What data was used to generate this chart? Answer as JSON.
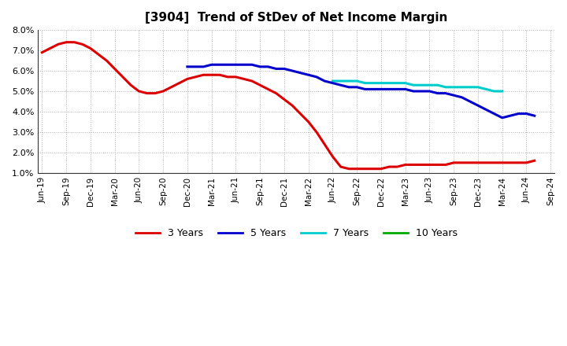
{
  "title": "[3904]  Trend of StDev of Net Income Margin",
  "background_color": "#ffffff",
  "grid_color": "#b0b0b0",
  "ylim": [
    0.01,
    0.08
  ],
  "yticks": [
    0.01,
    0.02,
    0.03,
    0.04,
    0.05,
    0.06,
    0.07,
    0.08
  ],
  "series": {
    "3 Years": {
      "color": "#dd0000",
      "x": [
        0,
        1,
        2,
        3,
        4,
        5,
        6,
        7,
        8,
        9,
        10,
        11,
        12,
        13,
        14,
        15,
        16,
        17,
        18,
        19,
        20,
        21,
        22,
        23,
        24,
        25,
        26,
        27,
        28,
        29,
        30,
        31,
        32,
        33,
        34,
        35,
        36,
        37,
        38,
        39,
        40,
        41,
        42,
        43,
        44,
        45,
        46,
        47,
        48,
        49,
        50,
        51,
        52,
        53,
        54,
        55,
        56,
        57,
        58,
        59,
        60,
        61
      ],
      "y": [
        0.069,
        0.071,
        0.073,
        0.074,
        0.074,
        0.073,
        0.071,
        0.068,
        0.065,
        0.061,
        0.057,
        0.053,
        0.05,
        0.049,
        0.049,
        0.05,
        0.052,
        0.054,
        0.056,
        0.057,
        0.058,
        0.058,
        0.058,
        0.057,
        0.057,
        0.056,
        0.055,
        0.053,
        0.051,
        0.049,
        0.046,
        0.043,
        0.039,
        0.035,
        0.03,
        0.024,
        0.018,
        0.013,
        0.012,
        0.012,
        0.012,
        0.012,
        0.012,
        0.013,
        0.013,
        0.014,
        0.014,
        0.014,
        0.014,
        0.014,
        0.014,
        0.015,
        0.015,
        0.015,
        0.015,
        0.015,
        0.015,
        0.015,
        0.015,
        0.015,
        0.015,
        0.016
      ]
    },
    "5 Years": {
      "color": "#0000cc",
      "x": [
        18,
        19,
        20,
        21,
        22,
        23,
        24,
        25,
        26,
        27,
        28,
        29,
        30,
        31,
        32,
        33,
        34,
        35,
        36,
        37,
        38,
        39,
        40,
        41,
        42,
        43,
        44,
        45,
        46,
        47,
        48,
        49,
        50,
        51,
        52,
        53,
        54,
        55,
        56,
        57,
        58,
        59,
        60,
        61
      ],
      "y": [
        0.062,
        0.062,
        0.062,
        0.063,
        0.063,
        0.063,
        0.063,
        0.063,
        0.063,
        0.062,
        0.062,
        0.061,
        0.061,
        0.06,
        0.059,
        0.058,
        0.057,
        0.055,
        0.054,
        0.053,
        0.052,
        0.052,
        0.051,
        0.051,
        0.051,
        0.051,
        0.051,
        0.051,
        0.05,
        0.05,
        0.05,
        0.049,
        0.049,
        0.048,
        0.047,
        0.045,
        0.043,
        0.041,
        0.039,
        0.037,
        0.038,
        0.039,
        0.039,
        0.038
      ]
    },
    "7 Years": {
      "color": "#00cccc",
      "x": [
        36,
        37,
        38,
        39,
        40,
        41,
        42,
        43,
        44,
        45,
        46,
        47,
        48,
        49,
        50,
        51,
        52,
        53,
        54,
        55,
        56,
        57
      ],
      "y": [
        0.055,
        0.055,
        0.055,
        0.055,
        0.054,
        0.054,
        0.054,
        0.054,
        0.054,
        0.054,
        0.053,
        0.053,
        0.053,
        0.053,
        0.052,
        0.052,
        0.052,
        0.052,
        0.052,
        0.051,
        0.05,
        0.05
      ]
    },
    "10 Years": {
      "color": "#00aa00",
      "x": [],
      "y": []
    }
  },
  "xtick_labels": [
    "Jun-19",
    "Sep-19",
    "Dec-19",
    "Mar-20",
    "Jun-20",
    "Sep-20",
    "Dec-20",
    "Mar-21",
    "Jun-21",
    "Sep-21",
    "Dec-21",
    "Mar-22",
    "Jun-22",
    "Sep-22",
    "Dec-22",
    "Mar-23",
    "Jun-23",
    "Sep-23",
    "Dec-23",
    "Mar-24",
    "Jun-24",
    "Sep-24"
  ],
  "xtick_positions": [
    0,
    3,
    6,
    9,
    12,
    15,
    18,
    21,
    24,
    27,
    30,
    33,
    36,
    39,
    42,
    45,
    48,
    51,
    54,
    57,
    60,
    63
  ],
  "legend_labels": [
    "3 Years",
    "5 Years",
    "7 Years",
    "10 Years"
  ],
  "legend_colors": [
    "#dd0000",
    "#0000cc",
    "#00cccc",
    "#00aa00"
  ]
}
